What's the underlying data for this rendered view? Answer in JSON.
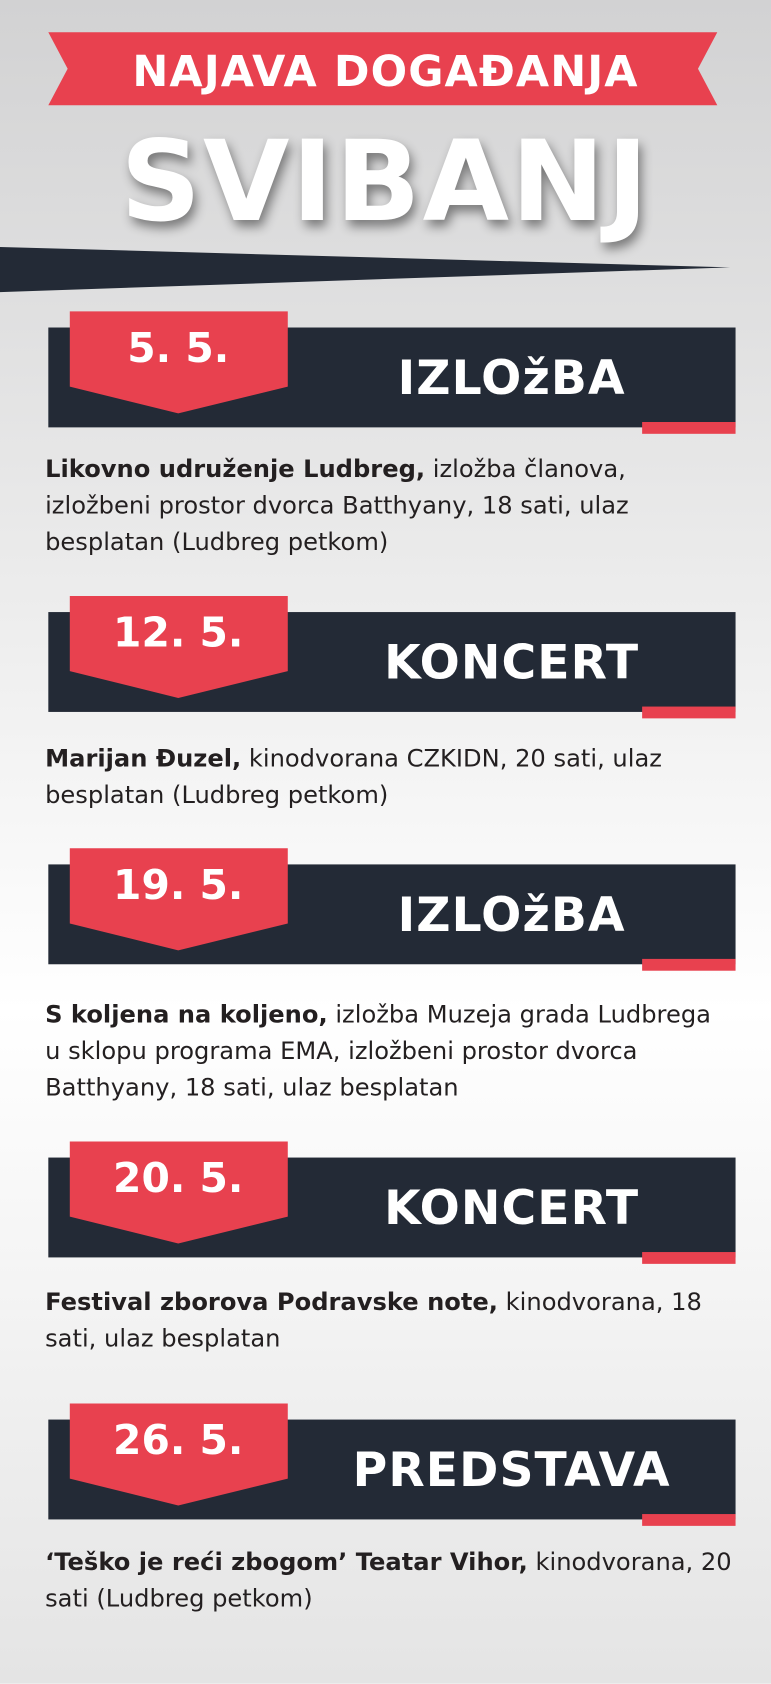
{
  "header": {
    "kicker": "NAJAVA DOGAĐANJA",
    "month": "SVIBANJ"
  },
  "events": [
    {
      "date": "5. 5.",
      "category": "IZLOžBA",
      "title": "Likovno udruženje Ludbreg,",
      "details": "izložba članova, izložbeni prostor dvorca Batthyany, 18 sati, ulaz besplatan (Ludbreg petkom)"
    },
    {
      "date": "12. 5.",
      "category": "KONCERT",
      "title": "Marijan Đuzel,",
      "details": "kinodvorana CZKIDN, 20 sati, ulaz besplatan (Ludbreg petkom)"
    },
    {
      "date": "19. 5.",
      "category": "IZLOžBA",
      "title": "S koljena na koljeno,",
      "details": "izložba Muzeja grada Ludbrega u sklopu programa EMA, izložbeni prostor dvorca Batthyany, 18 sati, ulaz besplatan"
    },
    {
      "date": "20. 5.",
      "category": "KONCERT",
      "title": "Festival zborova Podravske note,",
      "details": "kinodvorana, 18 sati, ulaz besplatan"
    },
    {
      "date": "26. 5.",
      "category": "PREDSTAVA",
      "title": "‘Teško je reći zbogom’ Teatar Vihor,",
      "details": "kinodvorana, 20 sati (Ludbreg petkom)"
    }
  ]
}
